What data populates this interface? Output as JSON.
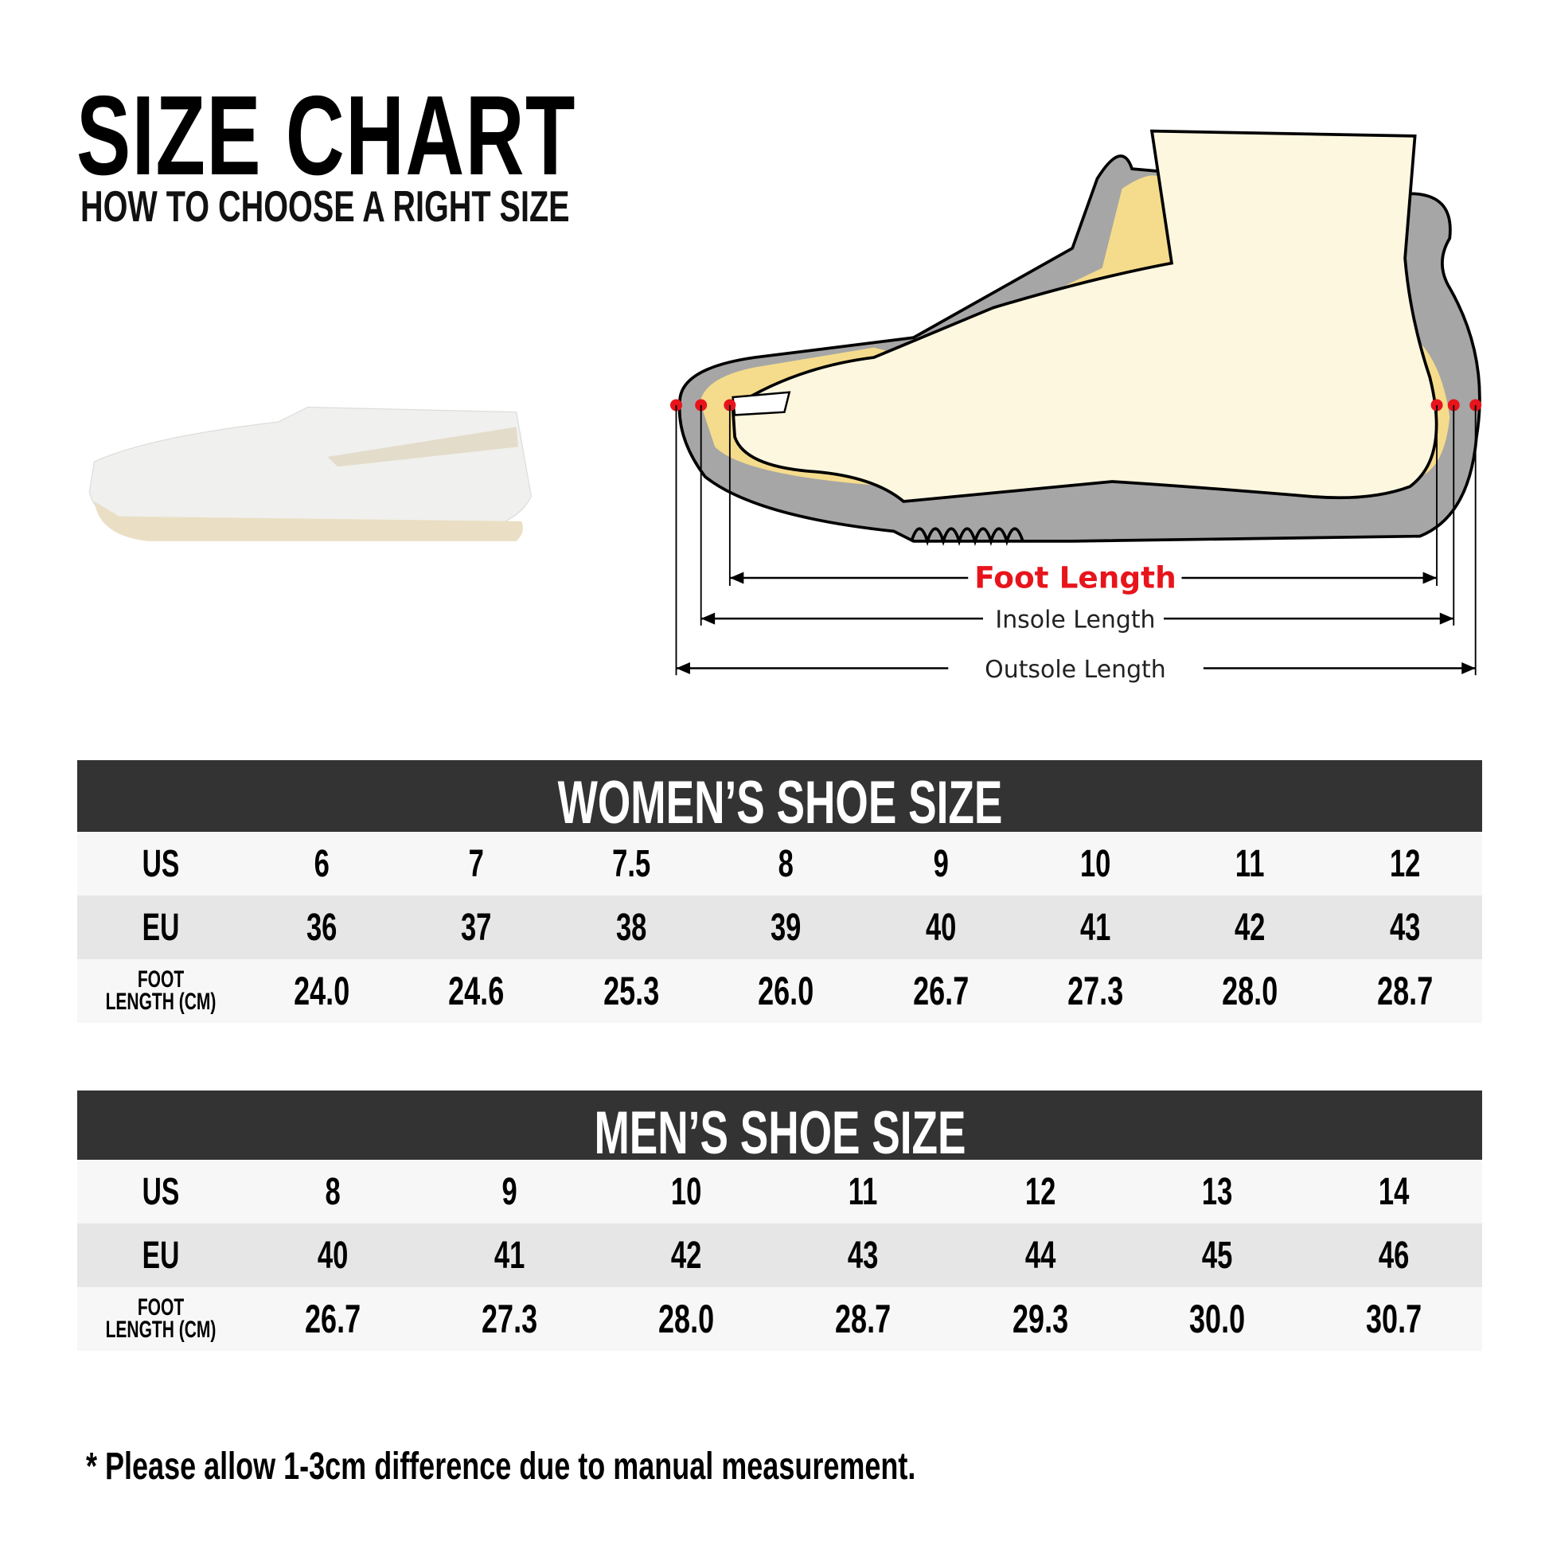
{
  "header": {
    "title": "SIZE CHART",
    "subtitle": "HOW TO CHOOSE A RIGHT SIZE"
  },
  "diagram": {
    "foot_length": "Foot Length",
    "insole_length": "Insole Length",
    "outsole_length": "Outsole Length",
    "accent": "#e8141b"
  },
  "women": {
    "title": "WOMEN’S SHOE SIZE",
    "labels": {
      "us": "US",
      "eu": "EU",
      "foot1": "FOOT",
      "foot2": "LENGTH (CM)"
    },
    "us": [
      "6",
      "7",
      "7.5",
      "8",
      "9",
      "10",
      "11",
      "12"
    ],
    "eu": [
      "36",
      "37",
      "38",
      "39",
      "40",
      "41",
      "42",
      "43"
    ],
    "foot": [
      "24.0",
      "24.6",
      "25.3",
      "26.0",
      "26.7",
      "27.3",
      "28.0",
      "28.7"
    ]
  },
  "men": {
    "title": "MEN’S SHOE SIZE",
    "labels": {
      "us": "US",
      "eu": "EU",
      "foot1": "FOOT",
      "foot2": "LENGTH (CM)"
    },
    "us": [
      "8",
      "9",
      "10",
      "11",
      "12",
      "13",
      "14"
    ],
    "eu": [
      "40",
      "41",
      "42",
      "43",
      "44",
      "45",
      "46"
    ],
    "foot": [
      "26.7",
      "27.3",
      "28.0",
      "28.7",
      "29.3",
      "30.0",
      "30.7"
    ]
  },
  "note": "* Please allow 1-3cm difference due to manual measurement."
}
